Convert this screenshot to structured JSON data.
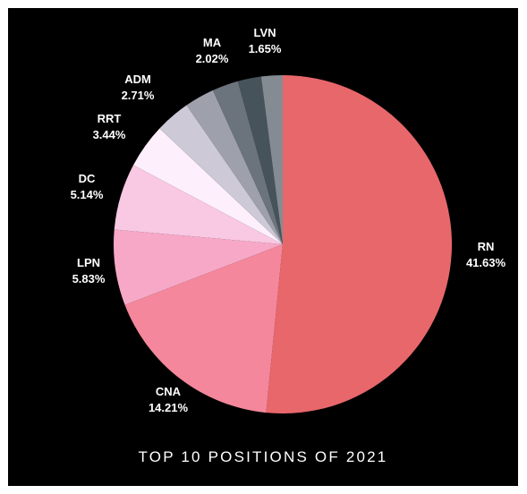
{
  "chart_data": {
    "type": "pie",
    "title": "TOP 10 POSITIONS OF 2021",
    "slices": [
      {
        "label": "RN",
        "value_label": "41.63%",
        "value": 41.63,
        "color": "#e8676b"
      },
      {
        "label": "CNA",
        "value_label": "14.21%",
        "value": 14.21,
        "color": "#f4879b"
      },
      {
        "label": "LPN",
        "value_label": "5.83%",
        "value": 5.83,
        "color": "#f7a8c7"
      },
      {
        "label": "DC",
        "value_label": "5.14%",
        "value": 5.14,
        "color": "#f9c8e3"
      },
      {
        "label": "RRT",
        "value_label": "3.44%",
        "value": 3.44,
        "color": "#fdeffb"
      },
      {
        "label": "ADM",
        "value_label": "2.71%",
        "value": 2.71,
        "color": "#cdc9d6"
      },
      {
        "label": "",
        "value_label": "",
        "value": 2.3,
        "color": "#9ea0ac"
      },
      {
        "label": "MA",
        "value_label": "2.02%",
        "value": 2.02,
        "color": "#6b737d"
      },
      {
        "label": "",
        "value_label": "",
        "value": 1.8,
        "color": "#47535b"
      },
      {
        "label": "LVN",
        "value_label": "1.65%",
        "value": 1.65,
        "color": "#858b93"
      }
    ]
  }
}
